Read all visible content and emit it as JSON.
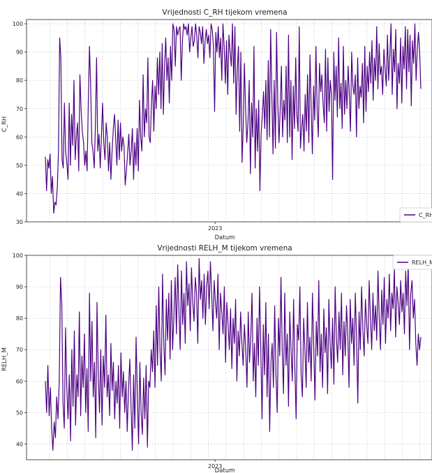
{
  "chart_data": [
    {
      "type": "line",
      "title": "Vrijednosti C_RH tijekom vremena",
      "xlabel": "Datum",
      "ylabel": "C_RH",
      "x_tick_labels": [
        "2023"
      ],
      "y_ticks": [
        30,
        40,
        50,
        60,
        70,
        80,
        90,
        100
      ],
      "ylim": [
        30,
        101.5
      ],
      "grid": true,
      "legend_position": "lower-right",
      "series": [
        {
          "name": "C_RH",
          "color": "#4b0082",
          "values": [
            53,
            41,
            52,
            49,
            54,
            40,
            46,
            33,
            37,
            36,
            42,
            55,
            95,
            88,
            52,
            49,
            72,
            55,
            51,
            45,
            72,
            50,
            68,
            57,
            80,
            52,
            60,
            65,
            48,
            82,
            70,
            62,
            58,
            50,
            55,
            48,
            72,
            92,
            78,
            58,
            55,
            49,
            64,
            88,
            55,
            61,
            49,
            60,
            72,
            58,
            52,
            65,
            60,
            48,
            58,
            45,
            55,
            63,
            68,
            59,
            50,
            66,
            52,
            65,
            55,
            60,
            57,
            43,
            48,
            54,
            61,
            50,
            55,
            63,
            45,
            58,
            50,
            63,
            48,
            73,
            60,
            55,
            82,
            60,
            70,
            65,
            88,
            60,
            58,
            72,
            80,
            62,
            78,
            70,
            88,
            75,
            90,
            70,
            93,
            68,
            85,
            95,
            80,
            88,
            72,
            92,
            80,
            100,
            98,
            85,
            99,
            96,
            98,
            99,
            80,
            94,
            100,
            98,
            99,
            96,
            100,
            90,
            95,
            99,
            92,
            94,
            100,
            96,
            88,
            99,
            97,
            93,
            99,
            86,
            94,
            98,
            93,
            96,
            88,
            100,
            98,
            92,
            69,
            97,
            90,
            99,
            88,
            95,
            80,
            100,
            92,
            79,
            94,
            75,
            96,
            90,
            85,
            100,
            79,
            99,
            68,
            84,
            92,
            62,
            90,
            51,
            64,
            86,
            70,
            58,
            65,
            80,
            47,
            72,
            60,
            92,
            49,
            70,
            55,
            73,
            41,
            61,
            67,
            76,
            63,
            80,
            59,
            87,
            60,
            98,
            75,
            54,
            80,
            56,
            97,
            72,
            58,
            70,
            85,
            60,
            73,
            66,
            85,
            58,
            96,
            60,
            80,
            52,
            78,
            63,
            88,
            68,
            62,
            99,
            56,
            63,
            68,
            55,
            75,
            62,
            82,
            58,
            89,
            70,
            54,
            78,
            66,
            92,
            70,
            60,
            86,
            76,
            82,
            72,
            65,
            91,
            62,
            88,
            69,
            80,
            75,
            45,
            90,
            73,
            85,
            67,
            95,
            70,
            79,
            63,
            92,
            68,
            80,
            70,
            85,
            75,
            62,
            90,
            78,
            75,
            82,
            60,
            88,
            70,
            78,
            74,
            86,
            65,
            92,
            69,
            85,
            76,
            90,
            79,
            94,
            73,
            88,
            80,
            99,
            77,
            93,
            82,
            85,
            75,
            91,
            84,
            78,
            96,
            80,
            89,
            100,
            75,
            91,
            83,
            98,
            70,
            86,
            79,
            95,
            72,
            92,
            84,
            99,
            77,
            98,
            83,
            96,
            71,
            94,
            86,
            100,
            80,
            91,
            97,
            90,
            77
          ]
        }
      ]
    },
    {
      "type": "line",
      "title": "Vrijednosti RELH_M tijekom vremena",
      "xlabel": "Datum",
      "ylabel": "RELH_M",
      "x_tick_labels": [
        "2023"
      ],
      "y_ticks": [
        40,
        50,
        60,
        70,
        80,
        90,
        100
      ],
      "ylim": [
        35,
        100
      ],
      "grid": true,
      "legend_position": "upper-right",
      "series": [
        {
          "name": "RELH_M",
          "color": "#4b0082",
          "values": [
            60,
            50,
            65,
            49,
            58,
            45,
            38,
            47,
            42,
            55,
            48,
            60,
            93,
            85,
            53,
            45,
            77,
            58,
            48,
            62,
            41,
            70,
            52,
            76,
            46,
            62,
            55,
            82,
            49,
            68,
            58,
            75,
            50,
            64,
            44,
            88,
            60,
            79,
            55,
            66,
            42,
            85,
            62,
            50,
            70,
            46,
            68,
            58,
            81,
            55,
            62,
            49,
            72,
            57,
            66,
            48,
            60,
            53,
            65,
            45,
            69,
            55,
            63,
            50,
            60,
            44,
            58,
            67,
            52,
            38,
            62,
            45,
            74,
            55,
            40,
            66,
            50,
            43,
            61,
            48,
            65,
            39,
            60,
            58,
            70,
            63,
            76,
            58,
            84,
            65,
            90,
            70,
            60,
            94,
            72,
            62,
            86,
            73,
            88,
            67,
            92,
            70,
            80,
            93,
            75,
            97,
            82,
            70,
            95,
            78,
            88,
            72,
            98,
            84,
            91,
            76,
            96,
            85,
            79,
            93,
            88,
            72,
            99,
            86,
            92,
            80,
            94,
            78,
            90,
            95,
            83,
            98,
            88,
            76,
            92,
            85,
            80,
            94,
            70,
            88,
            82,
            75,
            90,
            66,
            85,
            78,
            70,
            83,
            64,
            80,
            72,
            86,
            60,
            76,
            68,
            82,
            72,
            65,
            78,
            70,
            58,
            82,
            66,
            74,
            88,
            60,
            72,
            55,
            80,
            65,
            90,
            70,
            48,
            78,
            62,
            85,
            55,
            75,
            44,
            66,
            72,
            58,
            84,
            62,
            50,
            80,
            68,
            93,
            70,
            56,
            88,
            65,
            75,
            52,
            82,
            70,
            60,
            86,
            64,
            48,
            78,
            73,
            90,
            62,
            55,
            80,
            70,
            58,
            85,
            66,
            74,
            60,
            88,
            71,
            54,
            79,
            68,
            92,
            63,
            75,
            58,
            83,
            69,
            77,
            56,
            86,
            72,
            64,
            80,
            59,
            90,
            74,
            66,
            82,
            70,
            88,
            62,
            79,
            68,
            84,
            75,
            58,
            86,
            72,
            80,
            65,
            88,
            74,
            53,
            82,
            70,
            90,
            76,
            68,
            86,
            78,
            72,
            92,
            80,
            70,
            88,
            76,
            84,
            73,
            95,
            80,
            70,
            89,
            78,
            93,
            72,
            86,
            80,
            94,
            76,
            88,
            83,
            96,
            74,
            90,
            85,
            78,
            92,
            82,
            88,
            75,
            95,
            84,
            97,
            70,
            88,
            92,
            80,
            86,
            72,
            65,
            75,
            70,
            74
          ]
        }
      ]
    }
  ]
}
